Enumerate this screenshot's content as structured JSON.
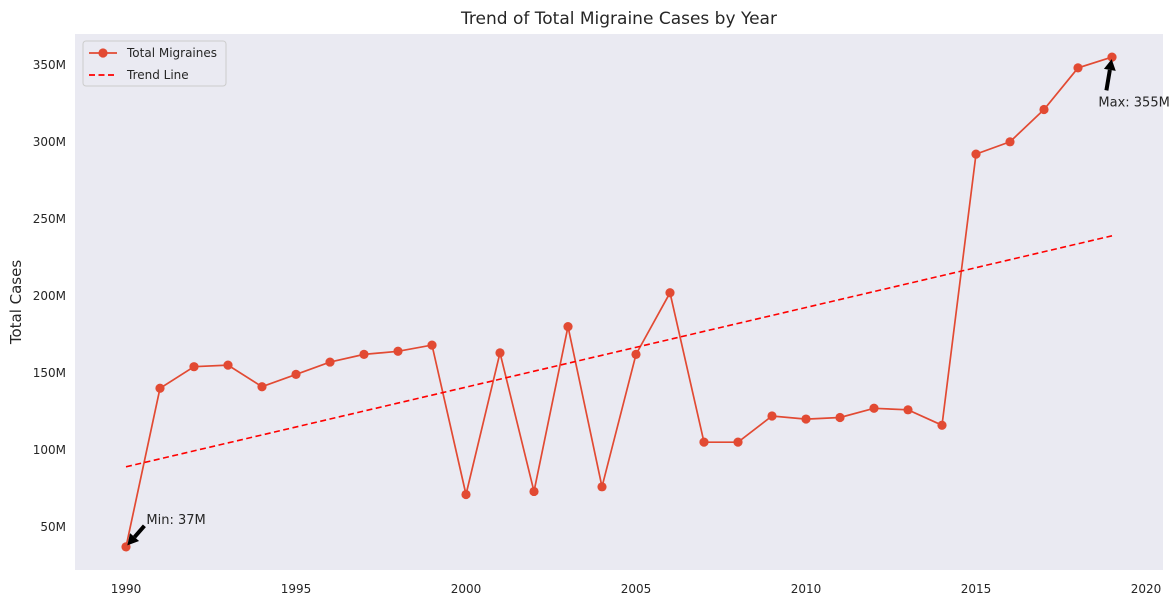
{
  "chart_data": {
    "type": "line",
    "title": "Trend of Total Migraine Cases by Year",
    "xlabel": "",
    "ylabel": "Total Cases",
    "xlim": [
      1988.5,
      2020.5
    ],
    "ylim": [
      22,
      370
    ],
    "x_ticks": [
      1990,
      1995,
      2000,
      2005,
      2010,
      2015,
      2020
    ],
    "y_ticks": [
      50,
      100,
      150,
      200,
      250,
      300,
      350
    ],
    "y_tick_labels": [
      "50M",
      "100M",
      "150M",
      "200M",
      "250M",
      "300M",
      "350M"
    ],
    "grid": false,
    "legend_position": "top-left",
    "series": [
      {
        "name": "Total Migraines",
        "style": "line-with-markers",
        "color": "#e24a33",
        "x": [
          1990,
          1991,
          1992,
          1993,
          1994,
          1995,
          1996,
          1997,
          1998,
          1999,
          2000,
          2001,
          2002,
          2003,
          2004,
          2005,
          2006,
          2007,
          2008,
          2009,
          2010,
          2011,
          2012,
          2013,
          2014,
          2015,
          2016,
          2017,
          2018,
          2019
        ],
        "values": [
          37,
          140,
          154,
          155,
          141,
          149,
          157,
          162,
          164,
          168,
          71,
          163,
          73,
          180,
          76,
          162,
          202,
          105,
          105,
          122,
          120,
          121,
          127,
          126,
          116,
          292,
          300,
          321,
          348,
          355
        ]
      },
      {
        "name": "Trend Line",
        "style": "dashed",
        "color": "#ff0000",
        "x": [
          1990,
          2019
        ],
        "values": [
          89,
          239
        ]
      }
    ],
    "annotations": [
      {
        "text": "Min: 37M",
        "point": [
          1990,
          37
        ],
        "text_at": [
          1990.6,
          52
        ]
      },
      {
        "text": "Max: 355M",
        "point": [
          2019,
          355
        ],
        "text_at": [
          2018.6,
          323
        ]
      }
    ]
  }
}
